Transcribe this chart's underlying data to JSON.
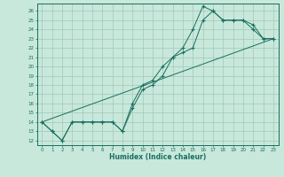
{
  "xlabel": "Humidex (Indice chaleur)",
  "xlim": [
    -0.5,
    23.5
  ],
  "ylim": [
    11.5,
    26.8
  ],
  "xticks": [
    0,
    1,
    2,
    3,
    4,
    5,
    6,
    7,
    8,
    9,
    10,
    11,
    12,
    13,
    14,
    15,
    16,
    17,
    18,
    19,
    20,
    21,
    22,
    23
  ],
  "yticks": [
    12,
    13,
    14,
    15,
    16,
    17,
    18,
    19,
    20,
    21,
    22,
    23,
    24,
    25,
    26
  ],
  "bg_color": "#c8e8dc",
  "line_color": "#1a6e5e",
  "grid_color": "#a0c8b8",
  "line1_x": [
    0,
    1,
    2,
    3,
    4,
    5,
    6,
    7,
    8,
    9,
    10,
    11,
    12,
    13,
    14,
    15,
    16,
    17,
    18,
    19,
    20,
    21,
    22,
    23
  ],
  "line1_y": [
    14,
    13,
    12,
    14,
    14,
    14,
    14,
    14,
    13,
    16,
    18,
    18.5,
    20,
    21,
    22,
    24,
    26.5,
    26,
    25,
    25,
    25,
    24.5,
    23,
    23
  ],
  "line2_x": [
    0,
    1,
    2,
    3,
    4,
    5,
    6,
    7,
    8,
    9,
    10,
    11,
    12,
    13,
    14,
    15,
    16,
    17,
    18,
    19,
    20,
    21,
    22,
    23
  ],
  "line2_y": [
    14,
    13,
    12,
    14,
    14,
    14,
    14,
    14,
    13,
    15.5,
    17.5,
    18,
    19,
    21,
    21.5,
    22,
    25,
    26,
    25,
    25,
    25,
    24,
    23,
    23
  ],
  "line3_x": [
    0,
    23
  ],
  "line3_y": [
    14,
    23
  ]
}
